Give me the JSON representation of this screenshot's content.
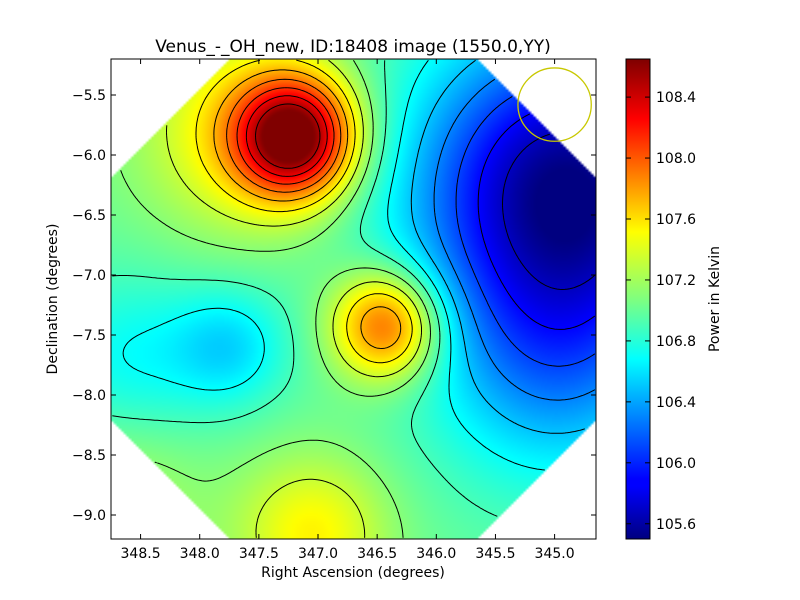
{
  "chart_data": {
    "type": "heatmap",
    "title": "Venus_-_OH_new, ID:18408 image (1550.0,YY)",
    "xlabel": "Right Ascension (degrees)",
    "ylabel": "Declination (degrees)",
    "colorbar_label": "Power in Kelvin",
    "xlim": [
      348.75,
      344.65
    ],
    "ylim": [
      -9.2,
      -5.2
    ],
    "x_ticks": [
      348.5,
      348.0,
      347.5,
      347.0,
      346.5,
      346.0,
      345.5,
      345.0
    ],
    "x_tick_labels": [
      "348.5",
      "348.0",
      "347.5",
      "347.0",
      "346.5",
      "346.0",
      "345.5",
      "345.0"
    ],
    "y_ticks": [
      -5.5,
      -6.0,
      -6.5,
      -7.0,
      -7.5,
      -8.0,
      -8.5,
      -9.0
    ],
    "y_tick_labels": [
      "−5.5",
      "−6.0",
      "−6.5",
      "−7.0",
      "−7.5",
      "−8.0",
      "−8.5",
      "−9.0"
    ],
    "colorbar_range": [
      105.5,
      108.65
    ],
    "colorbar_ticks": [
      105.6,
      106.0,
      106.4,
      106.8,
      107.2,
      107.6,
      108.0,
      108.4
    ],
    "colorbar_tick_labels": [
      "105.6",
      "106.0",
      "106.4",
      "106.8",
      "107.2",
      "107.6",
      "108.0",
      "108.4"
    ],
    "colormap": "jet",
    "beam_circle": {
      "ra": 345.0,
      "dec": -5.58,
      "radius_deg": 0.31,
      "color": "#c8c800"
    },
    "field_center": {
      "ra": 346.7,
      "dec": -7.2
    },
    "peaks": [
      {
        "ra": 347.2,
        "dec": -5.85,
        "value": 108.62
      },
      {
        "ra": 346.42,
        "dec": -7.42,
        "value": 108.05
      },
      {
        "ra": 347.05,
        "dec": -9.1,
        "value": 107.45
      }
    ],
    "minimum_region": {
      "ra": 344.9,
      "dec": -6.3,
      "value": 105.55
    }
  }
}
